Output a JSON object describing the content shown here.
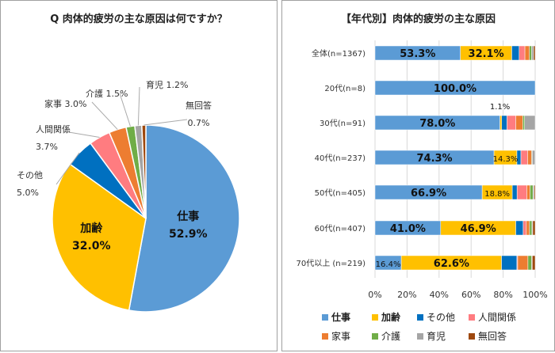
{
  "colors": {
    "仕事": "#5B9BD5",
    "加齢": "#FFC000",
    "その他": "#0070C0",
    "人間関係": "#FF7C80",
    "家事": "#ED7D31",
    "介護": "#70AD47",
    "育児": "#A5A5A5",
    "無回答": "#9E480E"
  },
  "chart_data": [
    {
      "type": "pie",
      "title": "Q 肉体的疲労の主な原因は何ですか？",
      "labels": [
        "仕事",
        "加齢",
        "その他",
        "人間関係",
        "家事",
        "介護",
        "育児",
        "無回答"
      ],
      "values": [
        52.9,
        32.0,
        5.0,
        3.7,
        3.0,
        1.5,
        1.2,
        0.7
      ],
      "value_labels": [
        "52.9%",
        "32.0%",
        "5.0%",
        "3.7%",
        "3.0%",
        "1.5%",
        "1.2%",
        "0.7%"
      ],
      "start": "12 o'clock, clockwise"
    },
    {
      "type": "bar",
      "orientation": "horizontal",
      "stacked": "100%",
      "title": "【年代別】肉体的疲労の主な原因",
      "categories": [
        "全体(n=1367)",
        "20代(n=8)",
        "30代(n=91)",
        "40代(n=237)",
        "50代(n=405)",
        "60代(n=407)",
        "70代以上 (n=219)"
      ],
      "series": [
        {
          "name": "仕事",
          "values": [
            53.3,
            100.0,
            78.0,
            74.3,
            66.9,
            41.0,
            16.4
          ]
        },
        {
          "name": "加齢",
          "values": [
            32.1,
            0,
            1.1,
            14.3,
            18.8,
            46.9,
            62.6
          ]
        },
        {
          "name": "その他",
          "values": [
            4.6,
            0,
            3.3,
            2.5,
            3.0,
            4.6,
            9.6
          ]
        },
        {
          "name": "人間関係",
          "values": [
            3.6,
            0,
            5.5,
            4.2,
            6.1,
            2.0,
            0.5
          ]
        },
        {
          "name": "家事",
          "values": [
            2.8,
            0,
            4.4,
            2.5,
            2.0,
            2.0,
            6.4
          ]
        },
        {
          "name": "介護",
          "values": [
            1.4,
            0,
            1.1,
            0.4,
            1.8,
            1.5,
            2.3
          ]
        },
        {
          "name": "育児",
          "values": [
            1.2,
            0,
            6.6,
            1.7,
            0.7,
            0.5,
            0.4
          ]
        },
        {
          "name": "無回答",
          "values": [
            1.0,
            0,
            0,
            0,
            0.7,
            1.5,
            1.8
          ]
        }
      ],
      "data_labels": [
        {
          "row": 0,
          "series": 0,
          "text": "53.3%"
        },
        {
          "row": 0,
          "series": 1,
          "text": "32.1%"
        },
        {
          "row": 1,
          "series": 0,
          "text": "100.0%"
        },
        {
          "row": 2,
          "series": 0,
          "text": "78.0%"
        },
        {
          "row": 2,
          "series": 1,
          "text": "1.1%",
          "above": true
        },
        {
          "row": 3,
          "series": 0,
          "text": "74.3%"
        },
        {
          "row": 3,
          "series": 1,
          "text": "14.3%",
          "small": true
        },
        {
          "row": 4,
          "series": 0,
          "text": "66.9%"
        },
        {
          "row": 4,
          "series": 1,
          "text": "18.8%",
          "small": true
        },
        {
          "row": 5,
          "series": 0,
          "text": "41.0%"
        },
        {
          "row": 5,
          "series": 1,
          "text": "46.9%"
        },
        {
          "row": 6,
          "series": 0,
          "text": "16.4%",
          "small": true
        },
        {
          "row": 6,
          "series": 1,
          "text": "62.6%"
        }
      ],
      "xticks": [
        "0%",
        "20%",
        "40%",
        "60%",
        "80%",
        "100%"
      ],
      "xlim": [
        0,
        100
      ],
      "grid": true,
      "legend": "bottom"
    }
  ]
}
